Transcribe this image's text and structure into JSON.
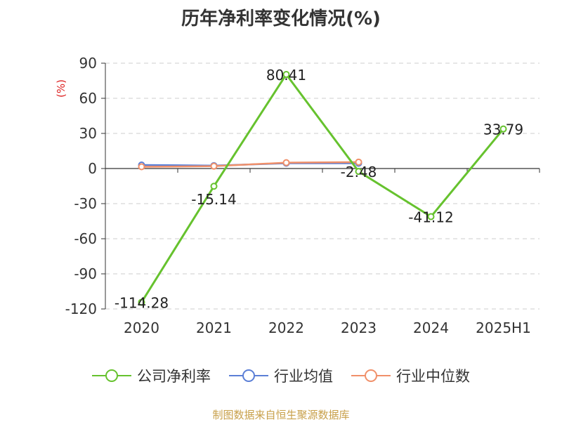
{
  "title": "历年净利率变化情况(%)",
  "unit_label": "(%)",
  "source": "制图数据来自恒生聚源数据库",
  "chart_data": {
    "type": "line",
    "categories": [
      "2020",
      "2021",
      "2022",
      "2023",
      "2024",
      "2025H1"
    ],
    "ylim": [
      -120,
      90
    ],
    "yticks": [
      90,
      60,
      30,
      0,
      -30,
      -60,
      -90,
      -120
    ],
    "ytick_labels": [
      "90",
      "60",
      "30",
      "0",
      "-30",
      "-60",
      "-90",
      "-120"
    ],
    "grid": true,
    "legend_position": "bottom",
    "series": [
      {
        "name": "公司净利率",
        "color": "#66c22e",
        "values": [
          -114.28,
          -15.14,
          80.41,
          -2.48,
          -41.12,
          33.79
        ],
        "data_labels": [
          "-114.28",
          "-15.14",
          "80.41",
          "-2.48",
          "-41.12",
          "33.79"
        ]
      },
      {
        "name": "行业均值",
        "color": "#5b7fd6",
        "values": [
          3.0,
          2.5,
          4.5,
          4.5,
          null,
          null
        ]
      },
      {
        "name": "行业中位数",
        "color": "#f0906a",
        "values": [
          1.5,
          2.0,
          5.0,
          5.5,
          null,
          null
        ]
      }
    ]
  }
}
